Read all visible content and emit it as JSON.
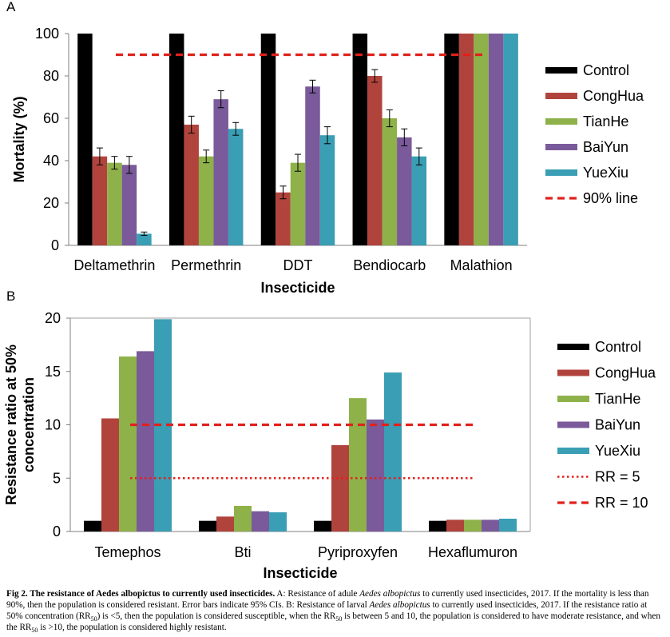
{
  "chart_data": [
    {
      "panel": "A",
      "type": "bar",
      "ylabel": "Mortality (%)",
      "xlabel": "Insecticide",
      "ylim": [
        0,
        100
      ],
      "yticks": [
        0,
        20,
        40,
        60,
        80,
        100
      ],
      "categories": [
        "Deltamethrin",
        "Permethrin",
        "DDT",
        "Bendiocarb",
        "Malathion"
      ],
      "series": [
        {
          "name": "Control",
          "color": "#000000",
          "values": [
            100,
            100,
            100,
            100,
            100
          ]
        },
        {
          "name": "CongHua",
          "color": "#b0443d",
          "values": [
            42,
            57,
            25,
            80,
            100
          ],
          "err": [
            4,
            4,
            3,
            3,
            0
          ]
        },
        {
          "name": "TianHe",
          "color": "#8eb14a",
          "values": [
            39,
            42,
            39,
            60,
            100
          ],
          "err": [
            3,
            3,
            4,
            4,
            0
          ]
        },
        {
          "name": "BaiYun",
          "color": "#7a5a9a",
          "values": [
            38,
            69,
            75,
            51,
            100
          ],
          "err": [
            4,
            4,
            3,
            4,
            0
          ]
        },
        {
          "name": "YueXiu",
          "color": "#3a9eb4",
          "values": [
            5.5,
            55,
            52,
            42,
            100
          ],
          "err": [
            0.8,
            3,
            4,
            4,
            0
          ]
        }
      ],
      "reference_lines": [
        {
          "name": "90% line",
          "value": 90,
          "style": "dashed",
          "color": "#e0211c"
        }
      ],
      "legend": "right"
    },
    {
      "panel": "B",
      "type": "bar",
      "ylabel_lines": [
        "Resistance ratio at 50%",
        "concentration"
      ],
      "xlabel": "Insecticide",
      "ylim": [
        0,
        20
      ],
      "yticks": [
        0,
        5,
        10,
        15,
        20
      ],
      "categories": [
        "Temephos",
        "Bti",
        "Pyriproxyfen",
        "Hexaflumuron"
      ],
      "series": [
        {
          "name": "Control",
          "color": "#000000",
          "values": [
            1,
            1,
            1,
            1
          ]
        },
        {
          "name": "CongHua",
          "color": "#b0443d",
          "values": [
            10.6,
            1.4,
            8.1,
            1.1
          ]
        },
        {
          "name": "TianHe",
          "color": "#8eb14a",
          "values": [
            16.4,
            2.4,
            12.5,
            1.1
          ]
        },
        {
          "name": "BaiYun",
          "color": "#7a5a9a",
          "values": [
            16.9,
            1.9,
            10.5,
            1.1
          ]
        },
        {
          "name": "YueXiu",
          "color": "#3a9eb4",
          "values": [
            19.9,
            1.8,
            14.9,
            1.2
          ]
        }
      ],
      "reference_lines": [
        {
          "name": "RR = 5",
          "value": 5,
          "style": "dotted",
          "color": "#e0211c"
        },
        {
          "name": "RR = 10",
          "value": 10,
          "style": "dashed",
          "color": "#e0211c"
        }
      ],
      "legend": "right"
    }
  ],
  "panel_labels": {
    "a": "A",
    "b": "B"
  },
  "caption": {
    "title": "Fig 2. The resistance of Aedes albopictus to currently used insecticides.",
    "seg1": " A: Resistance of adule ",
    "species1": "Aedes albopictus",
    "seg2": " to currently used insecticides, 2017. If the mortality is less than 90%, then the population is considered resistant. Error bars indicate 95% CIs. B: Resistance of larval ",
    "species2": "Aedes albopictus",
    "seg3": " to currently used insecticides, 2017. If the resistance ratio at 50% concentration (RR",
    "sub": "50",
    "seg4": ") is <5, then the population is considered susceptible, when the RR",
    "seg5": " is between 5 and 10, the population is considered to have moderate resistance, and when the RR",
    "seg6": " is >10, the population is considered highly resistant."
  }
}
